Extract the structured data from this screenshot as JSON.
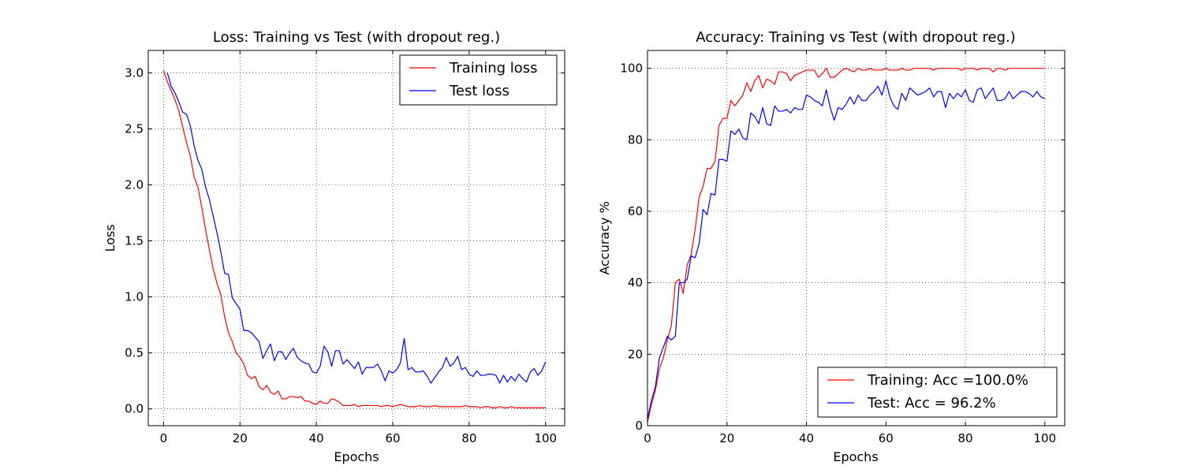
{
  "chart_data": [
    {
      "type": "line",
      "title": "Loss: Training vs Test (with dropout reg.)",
      "xlabel": "Epochs",
      "ylabel": "Loss",
      "xlim": [
        -4,
        105
      ],
      "ylim": [
        -0.15,
        3.2
      ],
      "xticks": [
        0,
        20,
        40,
        60,
        80,
        100
      ],
      "yticks": [
        0.0,
        0.5,
        1.0,
        1.5,
        2.0,
        2.5,
        3.0
      ],
      "ytick_labels": [
        "0.0",
        "0.5",
        "1.0",
        "1.5",
        "2.0",
        "2.5",
        "3.0"
      ],
      "grid": true,
      "legend_position": "top-right",
      "series": [
        {
          "name": "Training loss",
          "color": "#ff0000",
          "x": [
            0,
            1,
            2,
            3,
            4,
            5,
            6,
            7,
            8,
            9,
            10,
            11,
            12,
            13,
            14,
            15,
            16,
            17,
            18,
            19,
            20,
            21,
            22,
            23,
            24,
            25,
            26,
            27,
            28,
            29,
            30,
            31,
            32,
            33,
            34,
            35,
            36,
            37,
            38,
            39,
            40,
            41,
            42,
            43,
            44,
            45,
            46,
            47,
            48,
            49,
            50,
            51,
            52,
            53,
            54,
            55,
            56,
            57,
            58,
            59,
            60,
            61,
            62,
            63,
            64,
            65,
            66,
            67,
            68,
            69,
            70,
            71,
            72,
            73,
            74,
            75,
            76,
            77,
            78,
            79,
            80,
            81,
            82,
            83,
            84,
            85,
            86,
            87,
            88,
            89,
            90,
            91,
            92,
            93,
            94,
            95,
            96,
            97,
            98,
            99,
            100
          ],
          "values": [
            3.02,
            2.92,
            2.84,
            2.76,
            2.66,
            2.52,
            2.38,
            2.26,
            2.07,
            1.98,
            1.8,
            1.6,
            1.42,
            1.25,
            1.12,
            1.02,
            0.82,
            0.68,
            0.6,
            0.5,
            0.46,
            0.4,
            0.3,
            0.27,
            0.29,
            0.2,
            0.17,
            0.21,
            0.15,
            0.13,
            0.16,
            0.09,
            0.09,
            0.11,
            0.11,
            0.1,
            0.11,
            0.07,
            0.07,
            0.05,
            0.04,
            0.07,
            0.05,
            0.05,
            0.09,
            0.08,
            0.06,
            0.03,
            0.03,
            0.03,
            0.04,
            0.02,
            0.03,
            0.03,
            0.03,
            0.03,
            0.03,
            0.02,
            0.03,
            0.03,
            0.02,
            0.03,
            0.04,
            0.03,
            0.02,
            0.02,
            0.02,
            0.03,
            0.02,
            0.02,
            0.02,
            0.03,
            0.02,
            0.02,
            0.02,
            0.02,
            0.02,
            0.02,
            0.02,
            0.03,
            0.02,
            0.02,
            0.02,
            0.01,
            0.02,
            0.02,
            0.01,
            0.01,
            0.02,
            0.01,
            0.01,
            0.02,
            0.01,
            0.01,
            0.01,
            0.01,
            0.01,
            0.01,
            0.01,
            0.01,
            0.01
          ]
        },
        {
          "name": "Test loss",
          "color": "#0000ff",
          "x": [
            1,
            2,
            3,
            4,
            5,
            6,
            7,
            8,
            9,
            10,
            11,
            12,
            13,
            14,
            15,
            16,
            17,
            18,
            19,
            20,
            21,
            22,
            23,
            24,
            25,
            26,
            27,
            28,
            29,
            30,
            31,
            32,
            33,
            34,
            35,
            36,
            37,
            38,
            39,
            40,
            41,
            42,
            43,
            44,
            45,
            46,
            47,
            48,
            49,
            50,
            51,
            52,
            53,
            54,
            55,
            56,
            57,
            58,
            59,
            60,
            61,
            62,
            63,
            64,
            65,
            66,
            67,
            68,
            69,
            70,
            71,
            72,
            73,
            74,
            75,
            76,
            77,
            78,
            79,
            80,
            81,
            82,
            83,
            84,
            85,
            86,
            87,
            88,
            89,
            90,
            91,
            92,
            93,
            94,
            95,
            96,
            97,
            98,
            99,
            100
          ],
          "values": [
            3.0,
            2.88,
            2.82,
            2.74,
            2.65,
            2.63,
            2.53,
            2.35,
            2.22,
            2.14,
            1.98,
            1.87,
            1.72,
            1.57,
            1.4,
            1.21,
            1.2,
            0.99,
            0.94,
            0.89,
            0.7,
            0.7,
            0.68,
            0.64,
            0.6,
            0.45,
            0.52,
            0.58,
            0.43,
            0.51,
            0.51,
            0.44,
            0.5,
            0.54,
            0.46,
            0.43,
            0.41,
            0.4,
            0.33,
            0.32,
            0.38,
            0.56,
            0.51,
            0.38,
            0.52,
            0.52,
            0.4,
            0.44,
            0.4,
            0.36,
            0.42,
            0.31,
            0.37,
            0.37,
            0.37,
            0.4,
            0.34,
            0.25,
            0.34,
            0.32,
            0.35,
            0.41,
            0.63,
            0.35,
            0.37,
            0.33,
            0.33,
            0.34,
            0.29,
            0.23,
            0.28,
            0.33,
            0.37,
            0.46,
            0.38,
            0.41,
            0.47,
            0.35,
            0.37,
            0.31,
            0.29,
            0.34,
            0.3,
            0.3,
            0.31,
            0.31,
            0.3,
            0.23,
            0.3,
            0.24,
            0.29,
            0.25,
            0.31,
            0.27,
            0.24,
            0.33,
            0.36,
            0.3,
            0.34,
            0.42
          ]
        }
      ]
    },
    {
      "type": "line",
      "title": "Accuracy: Training vs Test (with dropout reg.)",
      "xlabel": "Epochs",
      "ylabel": "Accuracy %",
      "xlim": [
        0,
        105
      ],
      "ylim": [
        0,
        105
      ],
      "xticks": [
        0,
        20,
        40,
        60,
        80,
        100
      ],
      "yticks": [
        0,
        20,
        40,
        60,
        80,
        100
      ],
      "ytick_labels": [
        "0",
        "20",
        "40",
        "60",
        "80",
        "100"
      ],
      "grid": true,
      "legend_position": "bottom-right",
      "series": [
        {
          "name": "Training: Acc =100.0%",
          "color": "#ff0000",
          "x": [
            0,
            1,
            2,
            3,
            4,
            5,
            6,
            7,
            8,
            9,
            10,
            11,
            12,
            13,
            14,
            15,
            16,
            17,
            18,
            19,
            20,
            21,
            22,
            23,
            24,
            25,
            26,
            27,
            28,
            29,
            30,
            31,
            32,
            33,
            34,
            35,
            36,
            37,
            38,
            39,
            40,
            41,
            42,
            43,
            44,
            45,
            46,
            47,
            48,
            49,
            50,
            51,
            52,
            53,
            54,
            55,
            56,
            57,
            58,
            59,
            60,
            61,
            62,
            63,
            64,
            65,
            66,
            67,
            68,
            69,
            70,
            71,
            72,
            73,
            74,
            75,
            76,
            77,
            78,
            79,
            80,
            81,
            82,
            83,
            84,
            85,
            86,
            87,
            88,
            89,
            90,
            91,
            92,
            93,
            94,
            95,
            96,
            97,
            98,
            99,
            100
          ],
          "values": [
            1,
            6,
            10,
            16,
            19,
            24,
            28,
            40,
            41,
            37,
            45,
            48,
            55,
            64,
            67,
            72,
            72,
            74,
            84,
            86,
            86,
            91,
            89.5,
            91,
            92.5,
            96,
            93.5,
            96.5,
            98,
            94.5,
            97,
            96.5,
            95.5,
            99,
            99,
            98.5,
            96.5,
            98,
            98.5,
            99,
            99.5,
            99.5,
            99.5,
            97.5,
            98.5,
            100,
            97.5,
            97.5,
            98.5,
            99.5,
            100,
            99.5,
            99,
            100,
            99.5,
            99.5,
            100,
            99.5,
            99.5,
            99.5,
            100,
            99.5,
            99.5,
            99.5,
            100,
            99.5,
            99.5,
            100,
            100,
            100,
            100,
            100,
            99.5,
            100,
            100,
            100,
            100,
            100,
            100,
            99.5,
            100,
            100,
            100,
            99.5,
            100,
            100,
            100,
            99,
            100,
            100,
            99.5,
            100,
            100,
            100,
            100,
            100,
            100,
            100,
            100,
            100,
            100
          ]
        },
        {
          "name": "Test: Acc = 96.2%",
          "color": "#0000ff",
          "x": [
            0,
            1,
            2,
            3,
            4,
            5,
            6,
            7,
            8,
            9,
            10,
            11,
            12,
            13,
            14,
            15,
            16,
            17,
            18,
            19,
            20,
            21,
            22,
            23,
            24,
            25,
            26,
            27,
            28,
            29,
            30,
            31,
            32,
            33,
            34,
            35,
            36,
            37,
            38,
            39,
            40,
            41,
            42,
            43,
            44,
            45,
            46,
            47,
            48,
            49,
            50,
            51,
            52,
            53,
            54,
            55,
            56,
            57,
            58,
            59,
            60,
            61,
            62,
            63,
            64,
            65,
            66,
            67,
            68,
            69,
            70,
            71,
            72,
            73,
            74,
            75,
            76,
            77,
            78,
            79,
            80,
            81,
            82,
            83,
            84,
            85,
            86,
            87,
            88,
            89,
            90,
            91,
            92,
            93,
            94,
            95,
            96,
            97,
            98,
            99,
            100
          ],
          "values": [
            2,
            7,
            11,
            19,
            22,
            25,
            24,
            25,
            40,
            40,
            41,
            47.5,
            47,
            51,
            60.5,
            59,
            65,
            64.5,
            74.5,
            74.5,
            74,
            82.5,
            81.5,
            83,
            80.5,
            80,
            87.5,
            86.5,
            84.5,
            89,
            84.5,
            84,
            89.5,
            88,
            88,
            88.5,
            87.5,
            89,
            88.5,
            88.5,
            92.5,
            92,
            91,
            90.5,
            89.5,
            94,
            89,
            85.5,
            89,
            88.5,
            90,
            92,
            90,
            92.5,
            91,
            91,
            92.5,
            93.5,
            95,
            92.5,
            96.5,
            92,
            89.5,
            88.5,
            93,
            91,
            94.5,
            93.5,
            92.5,
            93,
            93.5,
            94.5,
            92,
            93.5,
            93.5,
            89,
            93,
            91.5,
            93,
            92,
            94,
            91,
            90.5,
            94,
            94.5,
            91.5,
            93,
            94.5,
            91,
            91,
            91.5,
            93.5,
            91.5,
            92.5,
            93.5,
            93.5,
            93,
            92,
            93.5,
            92,
            91.5
          ]
        }
      ]
    }
  ]
}
